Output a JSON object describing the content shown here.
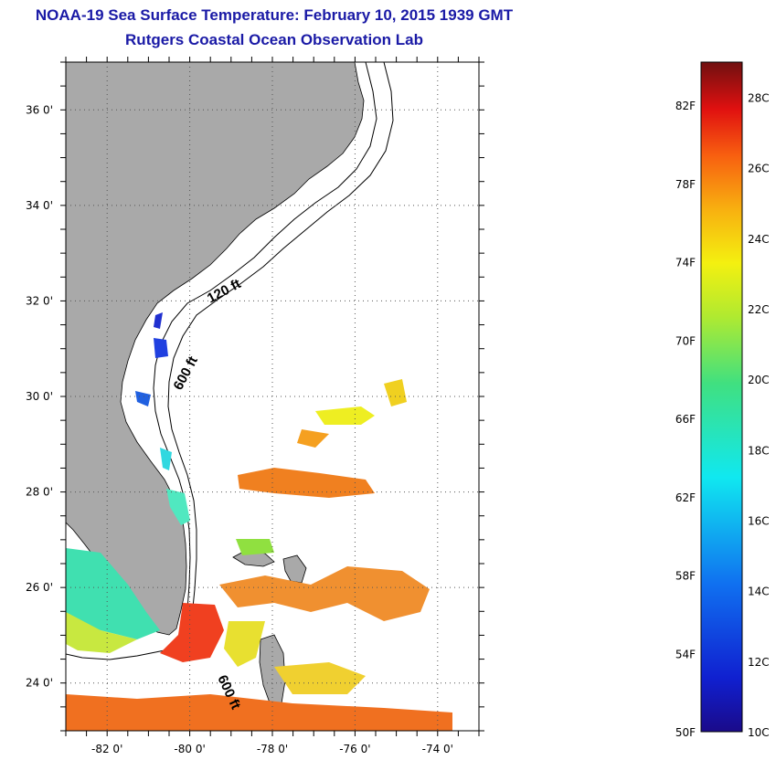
{
  "title": {
    "line1": "NOAA-19 Sea Surface Temperature:  February 10, 2015 1939 GMT",
    "line2": "Rutgers Coastal Ocean Observation Lab"
  },
  "map": {
    "lon_range": [
      -83,
      -73
    ],
    "lat_range": [
      23,
      37
    ],
    "lon_ticks": [
      {
        "value": -82,
        "label": "-82 0'"
      },
      {
        "value": -80,
        "label": "-80 0'"
      },
      {
        "value": -78,
        "label": "-78 0'"
      },
      {
        "value": -76,
        "label": "-76 0'"
      },
      {
        "value": -74,
        "label": "-74 0'"
      }
    ],
    "lat_ticks": [
      {
        "value": 24,
        "label": "24 0'"
      },
      {
        "value": 26,
        "label": "26 0'"
      },
      {
        "value": 28,
        "label": "28 0'"
      },
      {
        "value": 30,
        "label": "30 0'"
      },
      {
        "value": 32,
        "label": "32 0'"
      },
      {
        "value": 34,
        "label": "34 0'"
      },
      {
        "value": 36,
        "label": "36 0'"
      }
    ],
    "contour_labels": [
      "120 ft",
      "600 ft",
      "600 ft"
    ],
    "land_color": "#a9a9a9",
    "grid": "dotted"
  },
  "colorbar": {
    "fahrenheit": [
      "82F",
      "78F",
      "74F",
      "70F",
      "66F",
      "62F",
      "58F",
      "54F",
      "50F"
    ],
    "celsius": [
      "28C",
      "26C",
      "24C",
      "22C",
      "20C",
      "18C",
      "16C",
      "14C",
      "12C",
      "10C"
    ],
    "range_c": [
      10,
      29
    ]
  }
}
